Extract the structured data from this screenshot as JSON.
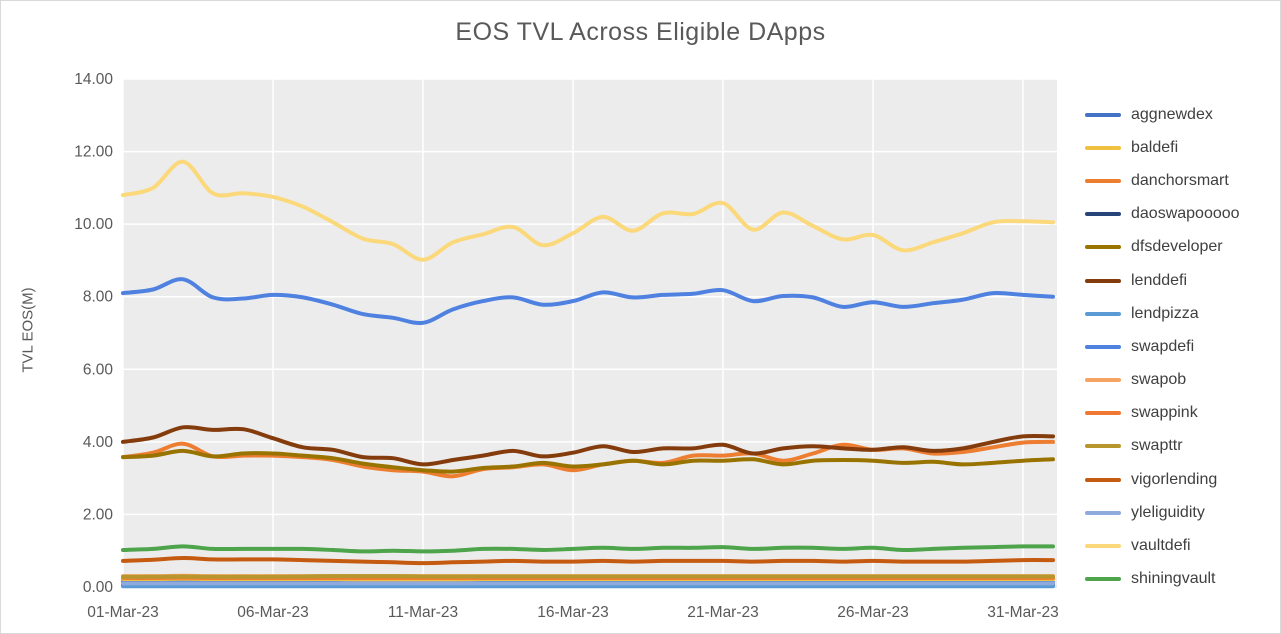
{
  "chart_data": {
    "type": "line",
    "title": "EOS TVL Across Eligible DApps",
    "xlabel": "",
    "ylabel": "TVL EOS(M)",
    "ylim": [
      0,
      14
    ],
    "yticks": [
      "0.00",
      "2.00",
      "4.00",
      "6.00",
      "8.00",
      "10.00",
      "12.00",
      "14.00"
    ],
    "xticks": [
      "01-Mar-23",
      "06-Mar-23",
      "11-Mar-23",
      "16-Mar-23",
      "21-Mar-23",
      "26-Mar-23",
      "31-Mar-23"
    ],
    "x": [
      "01-Mar-23",
      "02-Mar-23",
      "03-Mar-23",
      "04-Mar-23",
      "05-Mar-23",
      "06-Mar-23",
      "07-Mar-23",
      "08-Mar-23",
      "09-Mar-23",
      "10-Mar-23",
      "11-Mar-23",
      "12-Mar-23",
      "13-Mar-23",
      "14-Mar-23",
      "15-Mar-23",
      "16-Mar-23",
      "17-Mar-23",
      "18-Mar-23",
      "19-Mar-23",
      "20-Mar-23",
      "21-Mar-23",
      "22-Mar-23",
      "23-Mar-23",
      "24-Mar-23",
      "25-Mar-23",
      "26-Mar-23",
      "27-Mar-23",
      "28-Mar-23",
      "29-Mar-23",
      "30-Mar-23",
      "31-Mar-23",
      "01-Apr-23"
    ],
    "grid": true,
    "legend_position": "right",
    "series": [
      {
        "name": "aggnewdex",
        "color": "#4472c4",
        "values": [
          0.15,
          0.15,
          0.16,
          0.15,
          0.15,
          0.15,
          0.15,
          0.14,
          0.14,
          0.14,
          0.13,
          0.14,
          0.14,
          0.14,
          0.14,
          0.14,
          0.14,
          0.14,
          0.14,
          0.14,
          0.14,
          0.13,
          0.14,
          0.14,
          0.14,
          0.13,
          0.13,
          0.13,
          0.13,
          0.12,
          0.12,
          0.12
        ]
      },
      {
        "name": "baldefi",
        "color": "#f0c040",
        "values": [
          0.22,
          0.22,
          0.23,
          0.22,
          0.22,
          0.22,
          0.22,
          0.22,
          0.21,
          0.21,
          0.21,
          0.21,
          0.22,
          0.22,
          0.22,
          0.22,
          0.22,
          0.22,
          0.22,
          0.22,
          0.22,
          0.22,
          0.22,
          0.22,
          0.22,
          0.22,
          0.22,
          0.22,
          0.22,
          0.22,
          0.22,
          0.22
        ]
      },
      {
        "name": "danchorsmart",
        "color": "#ed7d31",
        "values": [
          3.58,
          3.7,
          3.95,
          3.6,
          3.62,
          3.62,
          3.58,
          3.5,
          3.32,
          3.22,
          3.18,
          3.05,
          3.25,
          3.3,
          3.38,
          3.22,
          3.38,
          3.48,
          3.42,
          3.62,
          3.62,
          3.68,
          3.48,
          3.68,
          3.92,
          3.78,
          3.82,
          3.68,
          3.72,
          3.85,
          3.98,
          4.0
        ]
      },
      {
        "name": "daoswapooooo",
        "color": "#264478",
        "values": [
          0.05,
          0.05,
          0.05,
          0.05,
          0.05,
          0.05,
          0.05,
          0.05,
          0.05,
          0.05,
          0.05,
          0.05,
          0.05,
          0.05,
          0.05,
          0.05,
          0.05,
          0.05,
          0.05,
          0.05,
          0.05,
          0.05,
          0.05,
          0.05,
          0.05,
          0.05,
          0.05,
          0.05,
          0.05,
          0.05,
          0.05,
          0.05
        ]
      },
      {
        "name": "dfsdeveloper",
        "color": "#997300",
        "values": [
          3.58,
          3.62,
          3.75,
          3.6,
          3.68,
          3.68,
          3.62,
          3.55,
          3.4,
          3.3,
          3.22,
          3.18,
          3.28,
          3.32,
          3.42,
          3.32,
          3.38,
          3.48,
          3.38,
          3.48,
          3.48,
          3.52,
          3.38,
          3.48,
          3.5,
          3.48,
          3.42,
          3.45,
          3.38,
          3.42,
          3.48,
          3.52
        ]
      },
      {
        "name": "lenddefi",
        "color": "#843c0c",
        "values": [
          4.0,
          4.12,
          4.4,
          4.33,
          4.35,
          4.1,
          3.85,
          3.78,
          3.58,
          3.55,
          3.38,
          3.5,
          3.62,
          3.75,
          3.6,
          3.7,
          3.88,
          3.72,
          3.82,
          3.82,
          3.92,
          3.68,
          3.82,
          3.88,
          3.82,
          3.78,
          3.85,
          3.75,
          3.82,
          4.0,
          4.15,
          4.15
        ]
      },
      {
        "name": "lendpizza",
        "color": "#5b9bd5",
        "values": [
          0.02,
          0.02,
          0.02,
          0.02,
          0.02,
          0.02,
          0.02,
          0.02,
          0.02,
          0.02,
          0.02,
          0.02,
          0.02,
          0.02,
          0.02,
          0.02,
          0.02,
          0.02,
          0.02,
          0.02,
          0.02,
          0.02,
          0.02,
          0.02,
          0.02,
          0.02,
          0.02,
          0.02,
          0.02,
          0.02,
          0.02,
          0.02
        ]
      },
      {
        "name": "swapdefi",
        "color": "#4f81e0",
        "values": [
          8.1,
          8.2,
          8.48,
          7.98,
          7.95,
          8.05,
          7.98,
          7.78,
          7.52,
          7.42,
          7.28,
          7.65,
          7.88,
          7.98,
          7.78,
          7.88,
          8.12,
          7.98,
          8.05,
          8.08,
          8.18,
          7.88,
          8.02,
          7.98,
          7.72,
          7.85,
          7.72,
          7.82,
          7.92,
          8.1,
          8.05,
          8.0
        ]
      },
      {
        "name": "swapob",
        "color": "#f4a460",
        "values": [
          0.3,
          0.3,
          0.31,
          0.3,
          0.3,
          0.3,
          0.3,
          0.3,
          0.3,
          0.3,
          0.3,
          0.3,
          0.3,
          0.3,
          0.3,
          0.3,
          0.3,
          0.3,
          0.3,
          0.3,
          0.3,
          0.3,
          0.3,
          0.3,
          0.3,
          0.3,
          0.3,
          0.3,
          0.3,
          0.3,
          0.3,
          0.3
        ]
      },
      {
        "name": "swappink",
        "color": "#f07830",
        "values": [
          0.25,
          0.25,
          0.26,
          0.25,
          0.25,
          0.25,
          0.25,
          0.25,
          0.25,
          0.25,
          0.25,
          0.25,
          0.25,
          0.25,
          0.25,
          0.25,
          0.25,
          0.25,
          0.25,
          0.25,
          0.25,
          0.25,
          0.25,
          0.25,
          0.25,
          0.25,
          0.25,
          0.25,
          0.25,
          0.25,
          0.25,
          0.25
        ]
      },
      {
        "name": "swapttr",
        "color": "#b8962e",
        "values": [
          0.28,
          0.28,
          0.29,
          0.28,
          0.28,
          0.28,
          0.29,
          0.3,
          0.3,
          0.3,
          0.29,
          0.29,
          0.29,
          0.29,
          0.29,
          0.29,
          0.29,
          0.29,
          0.29,
          0.29,
          0.29,
          0.29,
          0.29,
          0.29,
          0.29,
          0.29,
          0.29,
          0.29,
          0.29,
          0.29,
          0.29,
          0.29
        ]
      },
      {
        "name": "vigorlending",
        "color": "#c55a11",
        "values": [
          0.72,
          0.75,
          0.8,
          0.76,
          0.76,
          0.76,
          0.74,
          0.72,
          0.7,
          0.68,
          0.66,
          0.68,
          0.7,
          0.72,
          0.7,
          0.7,
          0.72,
          0.7,
          0.72,
          0.72,
          0.72,
          0.7,
          0.72,
          0.72,
          0.7,
          0.72,
          0.7,
          0.7,
          0.7,
          0.72,
          0.74,
          0.74
        ]
      },
      {
        "name": "yleliguidity",
        "color": "#8faadc",
        "values": [
          0.1,
          0.1,
          0.1,
          0.1,
          0.1,
          0.1,
          0.1,
          0.1,
          0.1,
          0.1,
          0.1,
          0.1,
          0.1,
          0.1,
          0.1,
          0.1,
          0.1,
          0.1,
          0.1,
          0.1,
          0.1,
          0.1,
          0.1,
          0.1,
          0.1,
          0.1,
          0.1,
          0.1,
          0.1,
          0.1,
          0.1,
          0.1
        ]
      },
      {
        "name": "vaultdefi",
        "color": "#fbd87a",
        "values": [
          10.8,
          11.0,
          11.72,
          10.85,
          10.85,
          10.75,
          10.48,
          10.05,
          9.6,
          9.45,
          9.02,
          9.5,
          9.72,
          9.92,
          9.42,
          9.75,
          10.2,
          9.82,
          10.3,
          10.28,
          10.58,
          9.85,
          10.32,
          9.95,
          9.58,
          9.7,
          9.28,
          9.5,
          9.75,
          10.05,
          10.08,
          10.05
        ]
      },
      {
        "name": "shiningvault",
        "color": "#4ea44b",
        "values": [
          1.02,
          1.05,
          1.12,
          1.05,
          1.05,
          1.05,
          1.05,
          1.02,
          0.98,
          1.0,
          0.98,
          1.0,
          1.05,
          1.05,
          1.02,
          1.05,
          1.08,
          1.05,
          1.08,
          1.08,
          1.1,
          1.05,
          1.08,
          1.08,
          1.05,
          1.08,
          1.02,
          1.05,
          1.08,
          1.1,
          1.12,
          1.12
        ]
      }
    ]
  }
}
